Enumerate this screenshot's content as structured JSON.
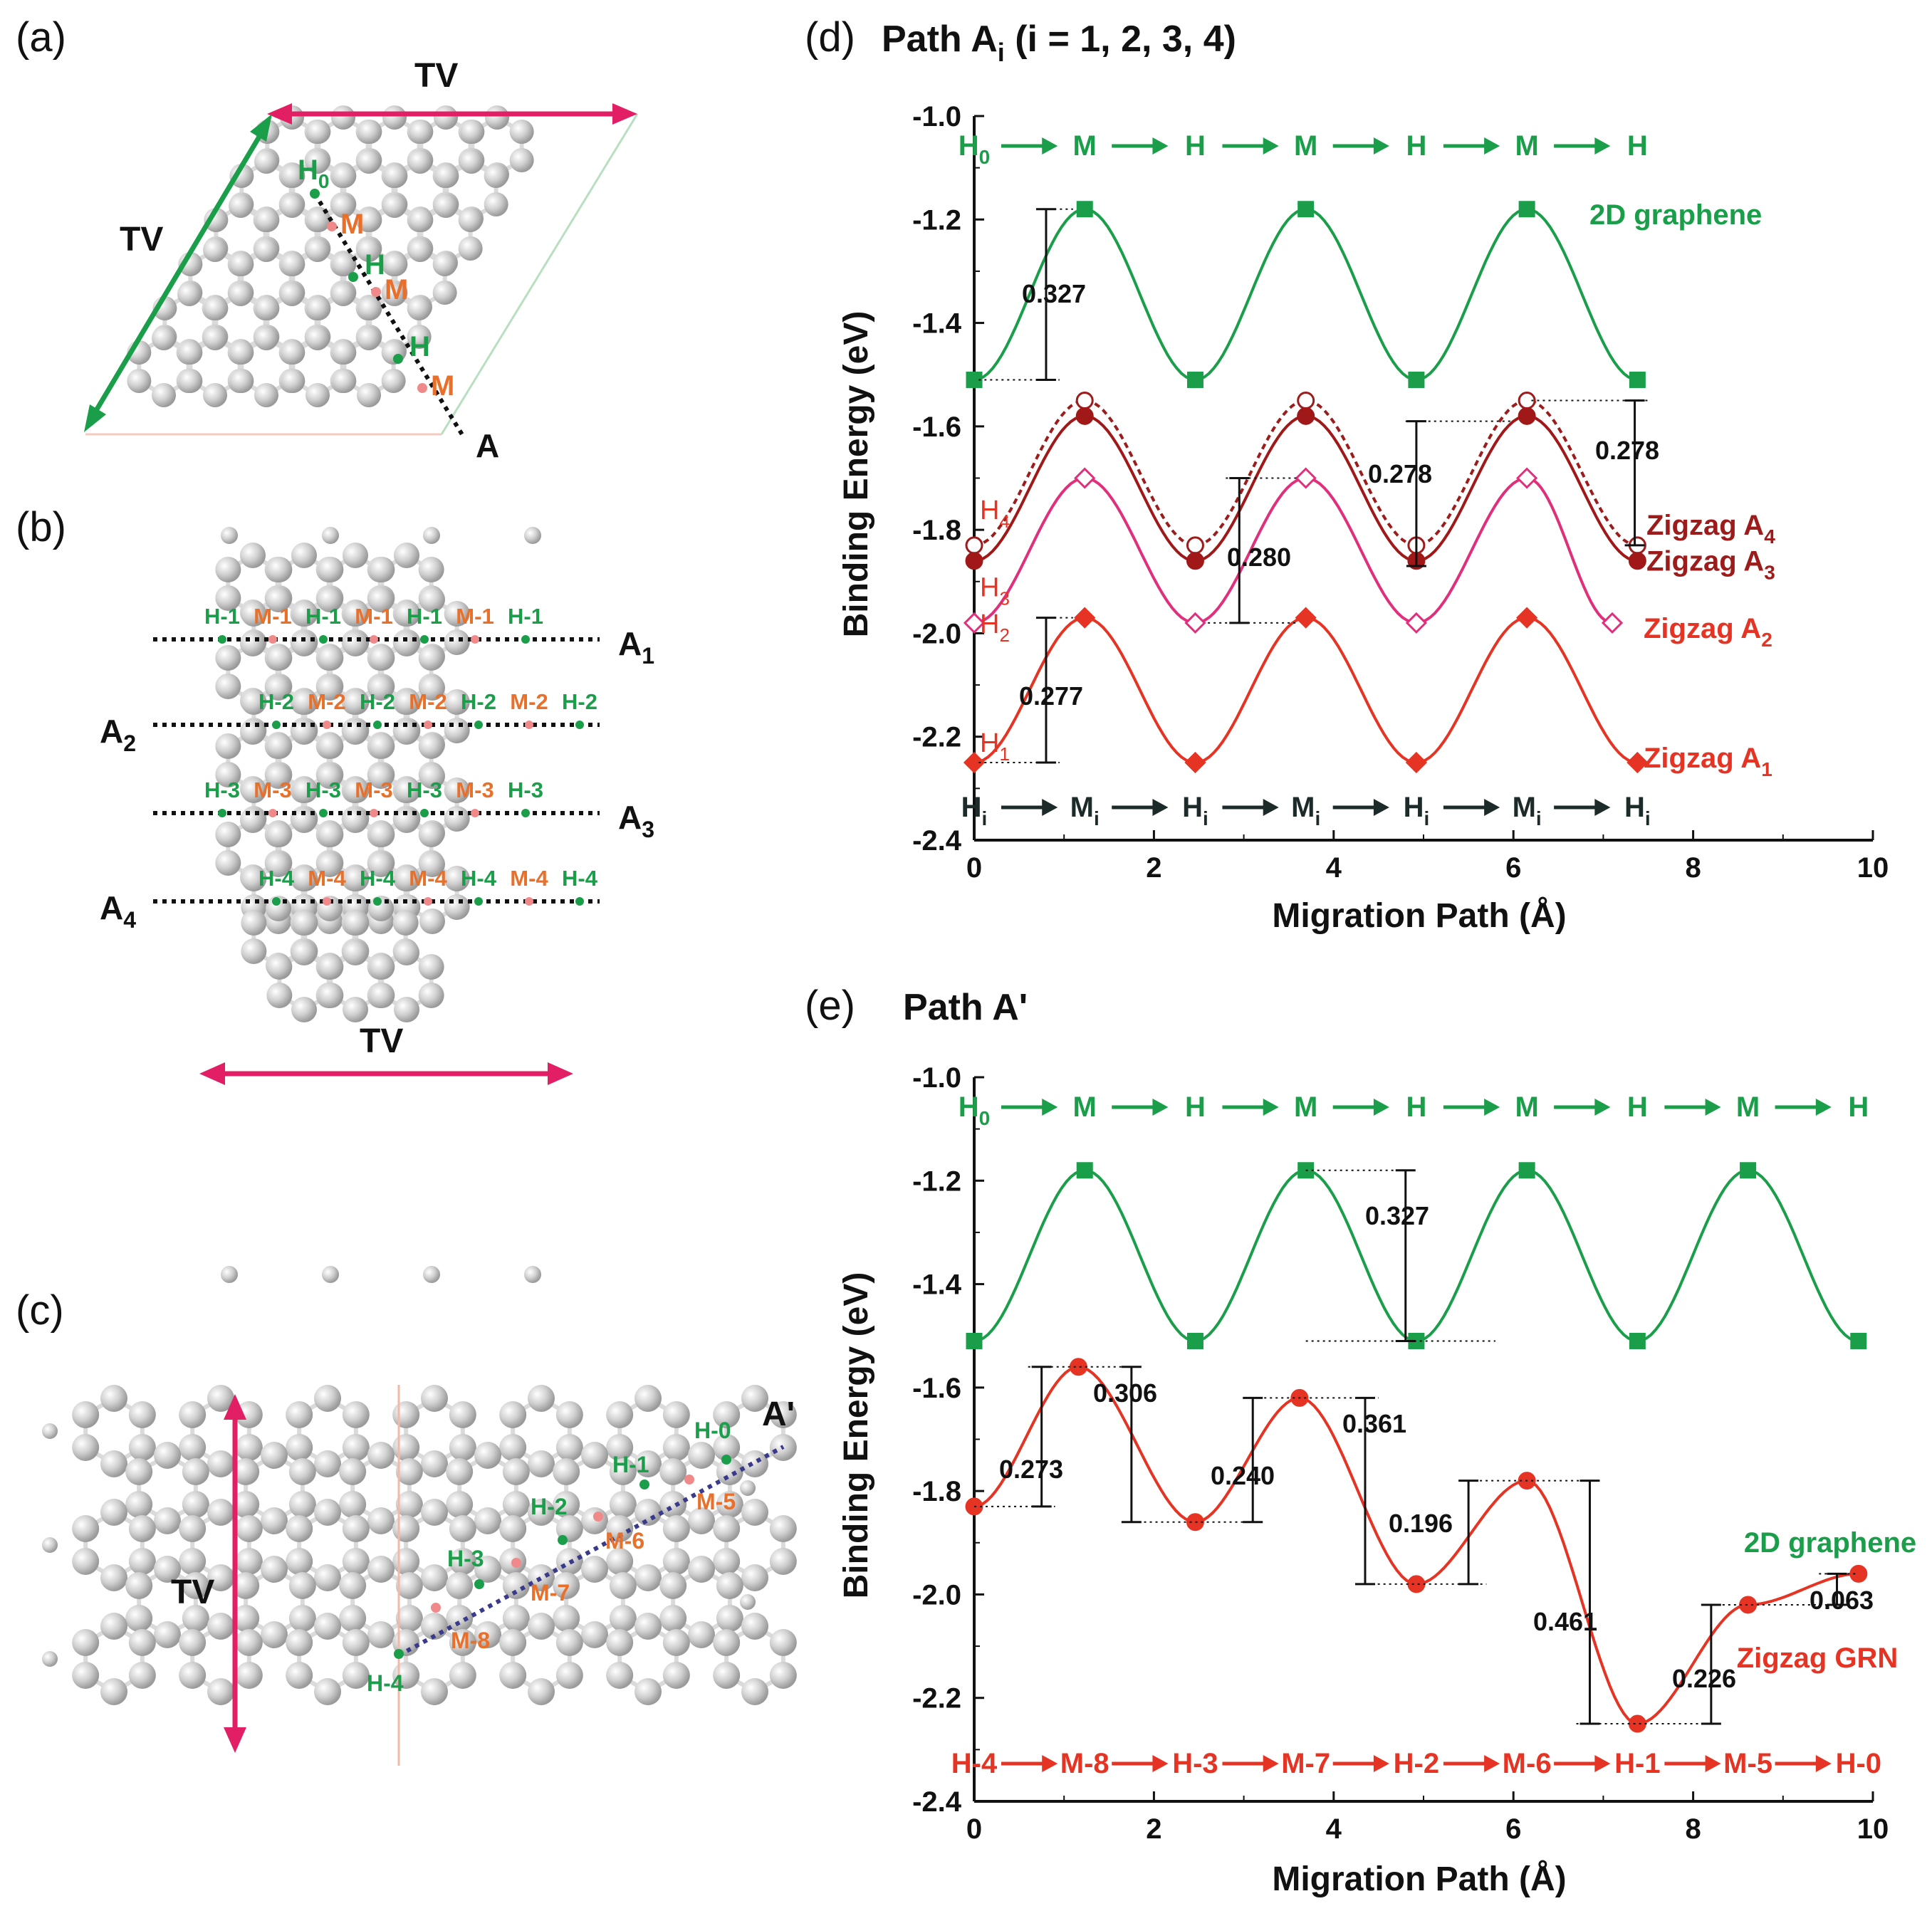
{
  "colors": {
    "green": "#1a9e4a",
    "red": "#e53424",
    "darkred": "#9c1c1c",
    "pink": "#e0307c",
    "orange": "#e8702a",
    "magenta": "#e21e64",
    "black": "#111111",
    "navy": "#3a3a8c",
    "atom": "#c8c8c8",
    "bond": "#dadada"
  },
  "panel_a": {
    "label": "(a)",
    "tv_top": "TV",
    "tv_left": "TV",
    "path_label": "A",
    "h0_base": "H",
    "h0_sub": "0",
    "sites": [
      {
        "text": "M",
        "kind": "M"
      },
      {
        "text": "H",
        "kind": "H"
      },
      {
        "text": "M",
        "kind": "M"
      },
      {
        "text": "H",
        "kind": "H"
      },
      {
        "text": "M",
        "kind": "M"
      }
    ]
  },
  "panel_b": {
    "label": "(b)",
    "tv": "TV",
    "rows": [
      {
        "path_base": "A",
        "path_sub": "1",
        "labels": [
          "H-1",
          "M-1",
          "H-1",
          "M-1",
          "H-1",
          "M-1",
          "H-1"
        ]
      },
      {
        "path_base": "A",
        "path_sub": "2",
        "labels": [
          "H-2",
          "M-2",
          "H-2",
          "M-2",
          "H-2",
          "M-2",
          "H-2"
        ]
      },
      {
        "path_base": "A",
        "path_sub": "3",
        "labels": [
          "H-3",
          "M-3",
          "H-3",
          "M-3",
          "H-3",
          "M-3",
          "H-3"
        ]
      },
      {
        "path_base": "A",
        "path_sub": "4",
        "labels": [
          "H-4",
          "M-4",
          "H-4",
          "M-4",
          "H-4",
          "M-4",
          "H-4"
        ]
      }
    ]
  },
  "panel_c": {
    "label": "(c)",
    "tv": "TV",
    "path_label": "A'",
    "sites": [
      "H-0",
      "M-5",
      "H-1",
      "M-6",
      "H-2",
      "M-7",
      "H-3",
      "M-8",
      "H-4"
    ]
  },
  "chart_data": [
    {
      "panel": "(d)",
      "type": "line",
      "title_base": "Path A",
      "title_sub": "i",
      "title_rest": " (i = 1, 2, 3, 4)",
      "xlabel": "Migration Path (Å)",
      "ylabel": "Binding Energy (eV)",
      "xlim": [
        0,
        10
      ],
      "ylim": [
        -2.4,
        -1.0
      ],
      "xticks": [
        0,
        2,
        4,
        6,
        8,
        10
      ],
      "yticks": [
        -1.0,
        -1.2,
        -1.4,
        -1.6,
        -1.8,
        -2.0,
        -2.2,
        -2.4
      ],
      "top_sequence": [
        "H0",
        "M",
        "H",
        "M",
        "H",
        "M",
        "H"
      ],
      "bottom_sequence": [
        "Hi",
        "Mi",
        "Hi",
        "Mi",
        "Hi",
        "Mi",
        "Hi"
      ],
      "series": [
        {
          "name": "2D graphene",
          "x": [
            0,
            1.23,
            2.46,
            3.69,
            4.92,
            6.15,
            7.38
          ],
          "y": [
            -1.51,
            -1.18,
            -1.51,
            -1.18,
            -1.51,
            -1.18,
            -1.51
          ]
        },
        {
          "name": "Zigzag A4",
          "x": [
            0,
            1.23,
            2.46,
            3.69,
            4.92,
            6.15,
            7.38
          ],
          "y": [
            -1.83,
            -1.55,
            -1.83,
            -1.55,
            -1.83,
            -1.55,
            -1.83
          ]
        },
        {
          "name": "Zigzag A3",
          "x": [
            0,
            1.23,
            2.46,
            3.69,
            4.92,
            6.15,
            7.38
          ],
          "y": [
            -1.86,
            -1.58,
            -1.86,
            -1.58,
            -1.86,
            -1.58,
            -1.86
          ]
        },
        {
          "name": "Zigzag A2",
          "x": [
            0,
            1.23,
            2.46,
            3.69,
            4.92,
            6.15,
            7.1
          ],
          "y": [
            -1.98,
            -1.7,
            -1.98,
            -1.7,
            -1.98,
            -1.7,
            -1.98
          ]
        },
        {
          "name": "Zigzag A1",
          "x": [
            0,
            1.23,
            2.46,
            3.69,
            4.92,
            6.15,
            7.38
          ],
          "y": [
            -2.25,
            -1.97,
            -2.25,
            -1.97,
            -2.25,
            -1.97,
            -2.25
          ]
        }
      ],
      "start_labels": [
        {
          "base": "H",
          "sub": "4"
        },
        {
          "base": "H",
          "sub": "3"
        },
        {
          "base": "H",
          "sub": "2"
        },
        {
          "base": "H",
          "sub": "1"
        }
      ],
      "legend": [
        {
          "base": "2D graphene",
          "sub": ""
        },
        {
          "base": "Zigzag A",
          "sub": "4"
        },
        {
          "base": "Zigzag A",
          "sub": "3"
        },
        {
          "base": "Zigzag A",
          "sub": "2"
        },
        {
          "base": "Zigzag A",
          "sub": "1"
        }
      ],
      "annotations": [
        "0.327",
        "0.280",
        "0.278",
        "0.278",
        "0.277"
      ]
    },
    {
      "panel": "(e)",
      "type": "line",
      "title": "Path A'",
      "xlabel": "Migration Path (Å)",
      "ylabel": "Binding Energy (eV)",
      "xlim": [
        0,
        10
      ],
      "ylim": [
        -2.4,
        -1.0
      ],
      "xticks": [
        0,
        2,
        4,
        6,
        8,
        10
      ],
      "yticks": [
        -1.0,
        -1.2,
        -1.4,
        -1.6,
        -1.8,
        -2.0,
        -2.2,
        -2.4
      ],
      "top_sequence": [
        "H0",
        "M",
        "H",
        "M",
        "H",
        "M",
        "H",
        "M",
        "H"
      ],
      "bottom_sequence": [
        "H-4",
        "M-8",
        "H-3",
        "M-7",
        "H-2",
        "M-6",
        "H-1",
        "M-5",
        "H-0"
      ],
      "series": [
        {
          "name": "2D graphene",
          "x": [
            0,
            1.23,
            2.46,
            3.69,
            4.92,
            6.15,
            7.38,
            8.61,
            9.84
          ],
          "y": [
            -1.51,
            -1.18,
            -1.51,
            -1.18,
            -1.51,
            -1.18,
            -1.51,
            -1.18,
            -1.51
          ]
        },
        {
          "name": "Zigzag GRN",
          "x": [
            0,
            1.16,
            2.46,
            3.62,
            4.92,
            6.15,
            7.38,
            8.61,
            9.84
          ],
          "y": [
            -1.83,
            -1.56,
            -1.86,
            -1.62,
            -1.98,
            -1.78,
            -2.25,
            -2.02,
            -1.96
          ]
        }
      ],
      "legend": [
        {
          "base": "2D graphene",
          "sub": ""
        },
        {
          "base": "Zigzag GRN",
          "sub": ""
        }
      ],
      "annotations": [
        "0.327",
        "0.273",
        "0.306",
        "0.240",
        "0.361",
        "0.196",
        "0.461",
        "0.226",
        "0.063"
      ]
    }
  ]
}
